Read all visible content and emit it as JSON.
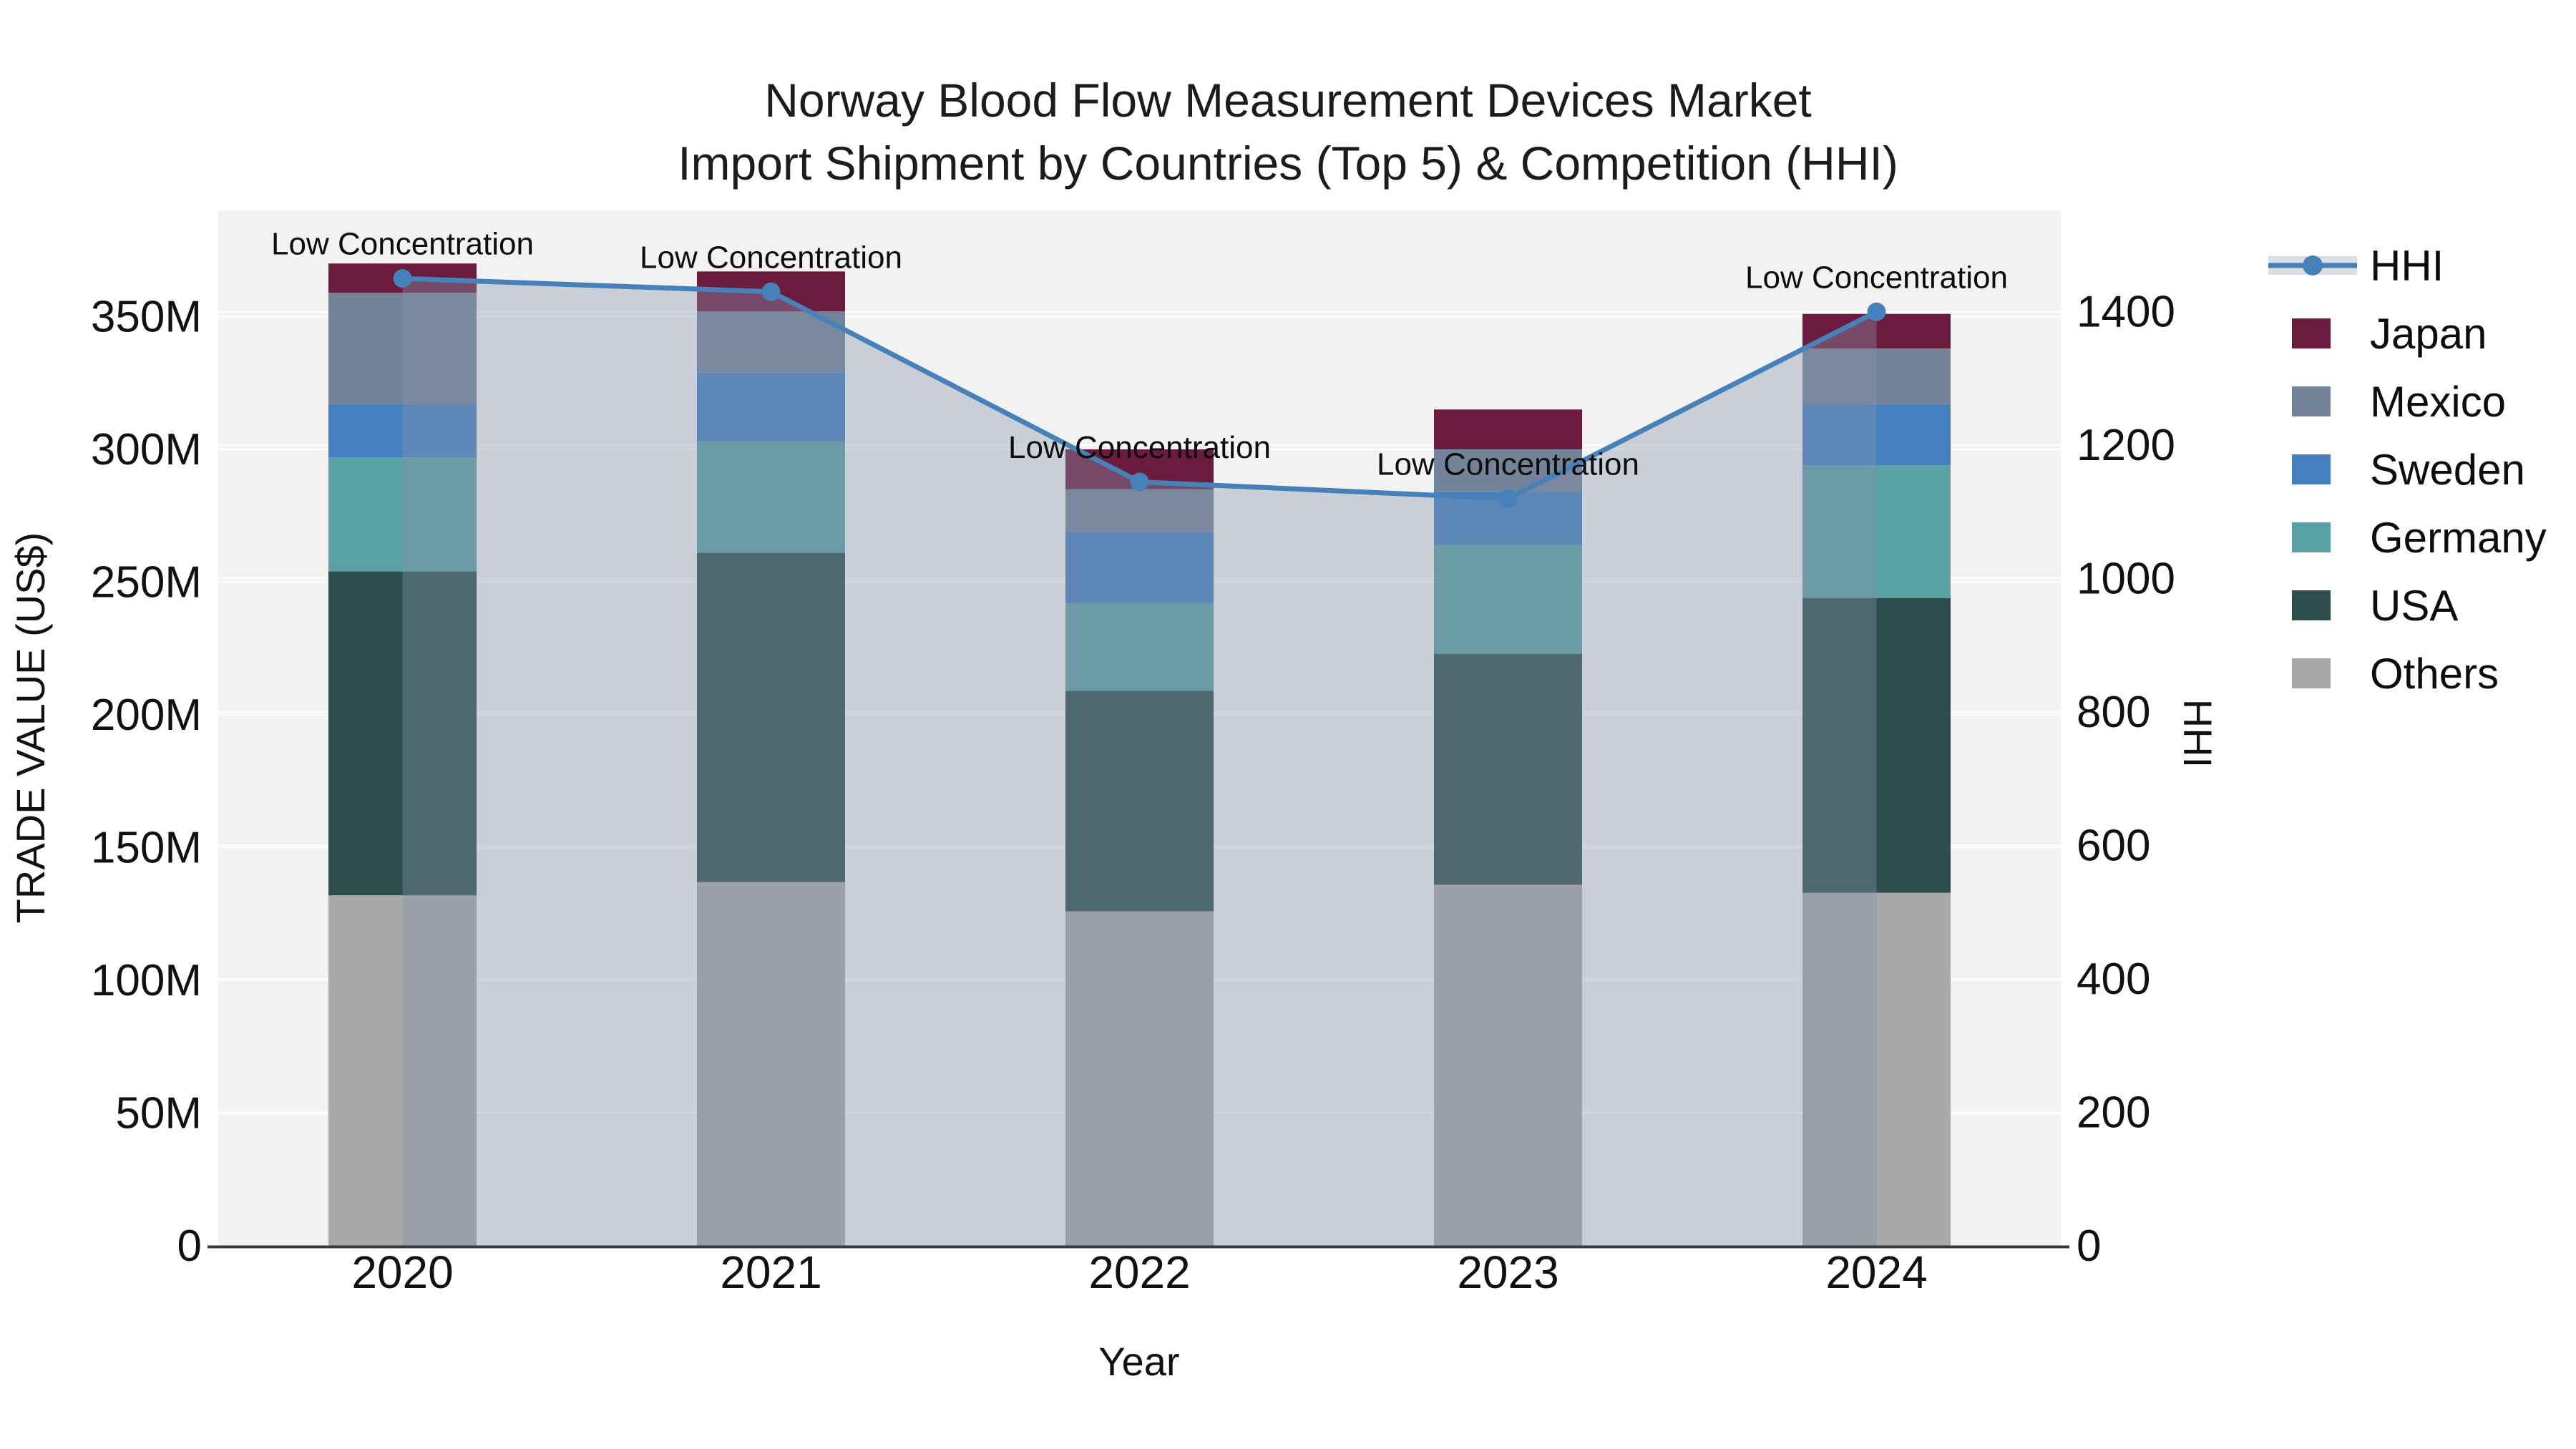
{
  "chart_data": {
    "type": "combo-stacked-bar-line",
    "title": "Norway Blood Flow Measurement Devices Market",
    "subtitle": "Import Shipment by Countries (Top 5) & Competition (HHI)",
    "xlabel": "Year",
    "categories": [
      "2020",
      "2021",
      "2022",
      "2023",
      "2024"
    ],
    "y_left": {
      "title": "TRADE VALUE (US$)",
      "tick_labels": [
        "0",
        "50M",
        "100M",
        "150M",
        "200M",
        "250M",
        "300M",
        "350M"
      ],
      "tick_values": [
        0,
        50,
        100,
        150,
        200,
        250,
        300,
        350
      ],
      "max": 390,
      "unit": "million US$"
    },
    "y_right": {
      "title": "HHI",
      "tick_labels": [
        "0",
        "200",
        "400",
        "600",
        "800",
        "1000",
        "1200",
        "1400"
      ],
      "tick_values": [
        0,
        200,
        400,
        600,
        800,
        1000,
        1200,
        1400
      ],
      "max": 1552
    },
    "series": [
      {
        "name": "Others",
        "color": "#A9A9A7",
        "values": [
          132,
          137,
          126,
          136,
          133
        ]
      },
      {
        "name": "USA",
        "color": "#2C4E4D",
        "values": [
          122,
          124,
          83,
          87,
          111
        ]
      },
      {
        "name": "Germany",
        "color": "#59A1A5",
        "values": [
          43,
          42,
          33,
          41,
          50
        ]
      },
      {
        "name": "Sweden",
        "color": "#4480BE",
        "values": [
          20,
          26,
          27,
          20,
          23
        ]
      },
      {
        "name": "Mexico",
        "color": "#73849A",
        "values": [
          42,
          23,
          16,
          16,
          21
        ]
      },
      {
        "name": "Japan",
        "color": "#6B1C3E",
        "values": [
          11,
          15,
          15,
          15,
          13
        ]
      }
    ],
    "bar_totals": [
      370,
      367,
      300,
      315,
      351
    ],
    "line": {
      "name": "HHI",
      "color": "#4781B9",
      "fill_color": "rgba(133,147,172,0.38)",
      "values": [
        1450,
        1430,
        1145,
        1120,
        1400
      ]
    },
    "annotations": [
      {
        "x": "2020",
        "text": "Low Concentration"
      },
      {
        "x": "2021",
        "text": "Low Concentration"
      },
      {
        "x": "2022",
        "text": "Low Concentration"
      },
      {
        "x": "2023",
        "text": "Low Concentration"
      },
      {
        "x": "2024",
        "text": "Low Concentration"
      }
    ],
    "legend": {
      "position": "right",
      "order": [
        "HHI",
        "Japan",
        "Mexico",
        "Sweden",
        "Germany",
        "USA",
        "Others"
      ]
    },
    "style_colors": {
      "plot_bg": "#F2F2F2",
      "gridline": "rgba(255,255,255,0.85)",
      "axis_line": "#3A3A3A",
      "text": "#111111",
      "legend_band": "#D9DDE4"
    }
  }
}
